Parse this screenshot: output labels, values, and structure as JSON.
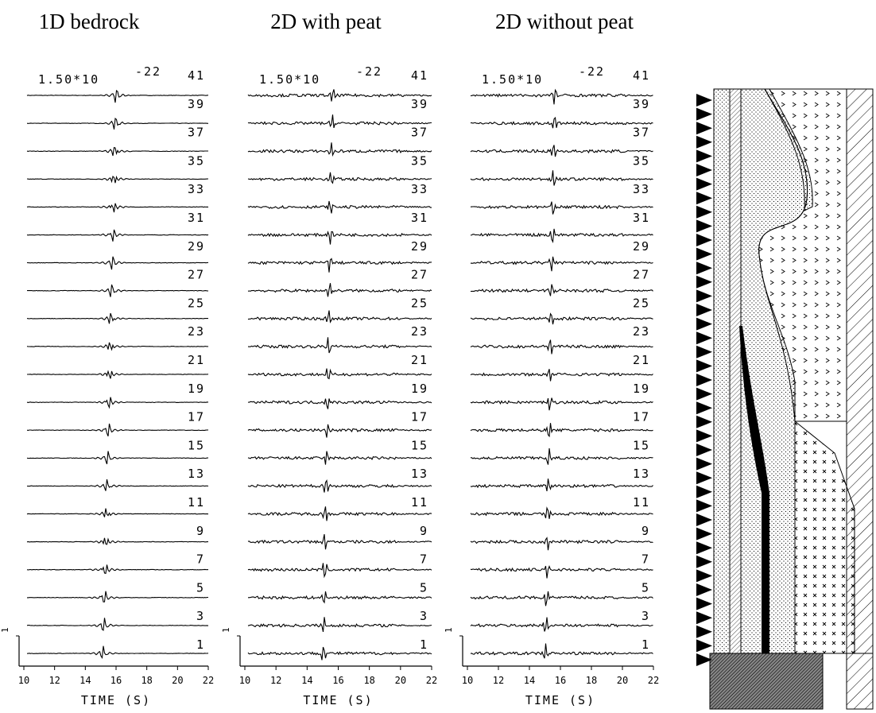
{
  "panels": [
    {
      "title": "1D bedrock",
      "scale": "1.50*10",
      "scale_exponent": "-22",
      "trace_labels": [
        "41",
        "39",
        "37",
        "35",
        "33",
        "31",
        "29",
        "27",
        "25",
        "23",
        "21",
        "19",
        "17",
        "15",
        "13",
        "11",
        "9",
        "7",
        "5",
        "3",
        "1"
      ],
      "xlim": [
        10,
        22
      ],
      "xticks": [
        10,
        12,
        14,
        16,
        18,
        20,
        22
      ],
      "xlabel": "TIME (S)",
      "amplitude_bar": "1"
    },
    {
      "title": "2D with peat",
      "scale": "1.50*10",
      "scale_exponent": "-22",
      "trace_labels": [
        "41",
        "39",
        "37",
        "35",
        "33",
        "31",
        "29",
        "27",
        "25",
        "23",
        "21",
        "19",
        "17",
        "15",
        "13",
        "11",
        "9",
        "7",
        "5",
        "3",
        "1"
      ],
      "xlim": [
        10,
        22
      ],
      "xticks": [
        10,
        12,
        14,
        16,
        18,
        20,
        22
      ],
      "xlabel": "TIME (S)",
      "amplitude_bar": "1"
    },
    {
      "title": "2D without peat",
      "scale": "1.50*10",
      "scale_exponent": "-22",
      "trace_labels": [
        "41",
        "39",
        "37",
        "35",
        "33",
        "31",
        "29",
        "27",
        "25",
        "23",
        "21",
        "19",
        "17",
        "15",
        "13",
        "11",
        "9",
        "7",
        "5",
        "3",
        "1"
      ],
      "xlim": [
        10,
        22
      ],
      "xticks": [
        10,
        12,
        14,
        16,
        18,
        20,
        22
      ],
      "xlabel": "TIME (S)",
      "amplitude_bar": "1"
    }
  ]
}
